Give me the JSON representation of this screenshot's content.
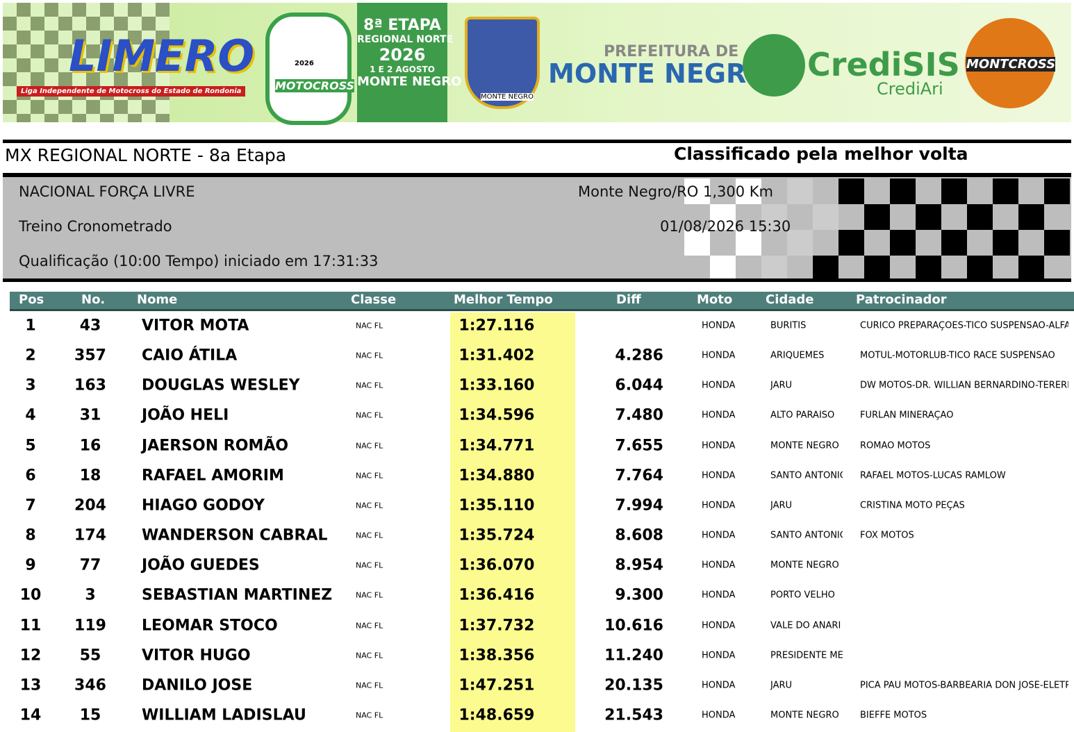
{
  "banner": {
    "limero": "LIMERO",
    "limero_sub": "Liga Independente de Motocross do Estado de Rondonia",
    "badge_year": "2026",
    "badge_name": "MOTOCROSS",
    "stage": "8ª ETAPA",
    "stage_region": "REGIONAL NORTE",
    "stage_year": "2026",
    "stage_dates": "1 E 2 AGOSTO",
    "stage_city": "MONTE NEGRO",
    "crest": "MONTE NEGRO",
    "prefeitura": "PREFEITURA DE",
    "prefeitura_city": "MONTE NEGRO",
    "credisis": "CrediSIS",
    "crediari": "CrediAri",
    "montcross": "MONTCROSS"
  },
  "header": {
    "event": "MX REGIONAL NORTE - 8a Etapa",
    "sort_note": "Classificado pela melhor volta",
    "category": "NACIONAL FORÇA LIVRE",
    "venue": "Monte Negro/RO 1,300 Km",
    "session": "Treino Cronometrado",
    "datetime": "01/08/2026 15:30",
    "qualification": "Qualificação (10:00 Tempo) iniciado em 17:31:33"
  },
  "table": {
    "columns": [
      "Pos",
      "No.",
      "Nome",
      "Classe",
      "Melhor Tempo",
      "Diff",
      "Moto",
      "Cidade",
      "Patrocinador"
    ],
    "rows": [
      [
        "1",
        "43",
        "VITOR MOTA",
        "NAC FL",
        "1:27.116",
        null,
        "HONDA",
        "BURITIS",
        "CURICO PREPARAÇÕES-TICO SUSPENSÃO-ALFA"
      ],
      [
        "2",
        "357",
        "CAIO ÁTILA",
        "NAC FL",
        "1:31.402",
        "4.286",
        "HONDA",
        "ARIQUEMES",
        "MOTUL-MOTORLUB-TICO RACE SUSPENSÃO"
      ],
      [
        "3",
        "163",
        "DOUGLAS WESLEY",
        "NAC FL",
        "1:33.160",
        "6.044",
        "HONDA",
        "JARU",
        "DW MOTOS-DR. WILLIAN BERNARDINO-TERERE"
      ],
      [
        "4",
        "31",
        "JOÃO HELI",
        "NAC FL",
        "1:34.596",
        "7.480",
        "HONDA",
        "ALTO PARAÍSO",
        "FURLAN MINERAÇÃO"
      ],
      [
        "5",
        "16",
        "JAERSON ROMÃO",
        "NAC FL",
        "1:34.771",
        "7.655",
        "HONDA",
        "MONTE NEGRO",
        "ROMÃO MOTOS"
      ],
      [
        "6",
        "18",
        "RAFAEL AMORIM",
        "NAC FL",
        "1:34.880",
        "7.764",
        "HONDA",
        "SANTO ANTÔNIO",
        "RAFAEL MOTOS-LUCAS RAMLOW"
      ],
      [
        "7",
        "204",
        "HIAGO GODOY",
        "NAC FL",
        "1:35.110",
        "7.994",
        "HONDA",
        "JARU",
        "CRISTINA MOTO PEÇAS"
      ],
      [
        "8",
        "174",
        "WANDERSON CABRAL",
        "NAC FL",
        "1:35.724",
        "8.608",
        "HONDA",
        "SANTO ANTÔNIO",
        "FOX MOTOS"
      ],
      [
        "9",
        "77",
        "JOÃO GUEDES",
        "NAC FL",
        "1:36.070",
        "8.954",
        "HONDA",
        "MONTE NEGRO",
        null
      ],
      [
        "10",
        "3",
        "SEBASTIAN MARTINEZ",
        "NAC FL",
        "1:36.416",
        "9.300",
        "HONDA",
        "PORTO VELHO",
        null
      ],
      [
        "11",
        "119",
        "LEOMAR STOCO",
        "NAC FL",
        "1:37.732",
        "10.616",
        "HONDA",
        "VALE DO ANARI",
        null
      ],
      [
        "12",
        "55",
        "VITOR HUGO",
        "NAC FL",
        "1:38.356",
        "11.240",
        "HONDA",
        "PRESIDENTE MÉ",
        null
      ],
      [
        "13",
        "346",
        "DANILO JOSE",
        "NAC FL",
        "1:47.251",
        "20.135",
        "HONDA",
        "JARU",
        "PICA PAU MOTOS-BARBEARIA DON JOSÉ-ELETR"
      ],
      [
        "14",
        "15",
        "WILLIAM LADISLAU",
        "NAC FL",
        "1:48.659",
        "21.543",
        "HONDA",
        "MONTE NEGRO",
        "BIEFFE MOTOS"
      ]
    ]
  }
}
